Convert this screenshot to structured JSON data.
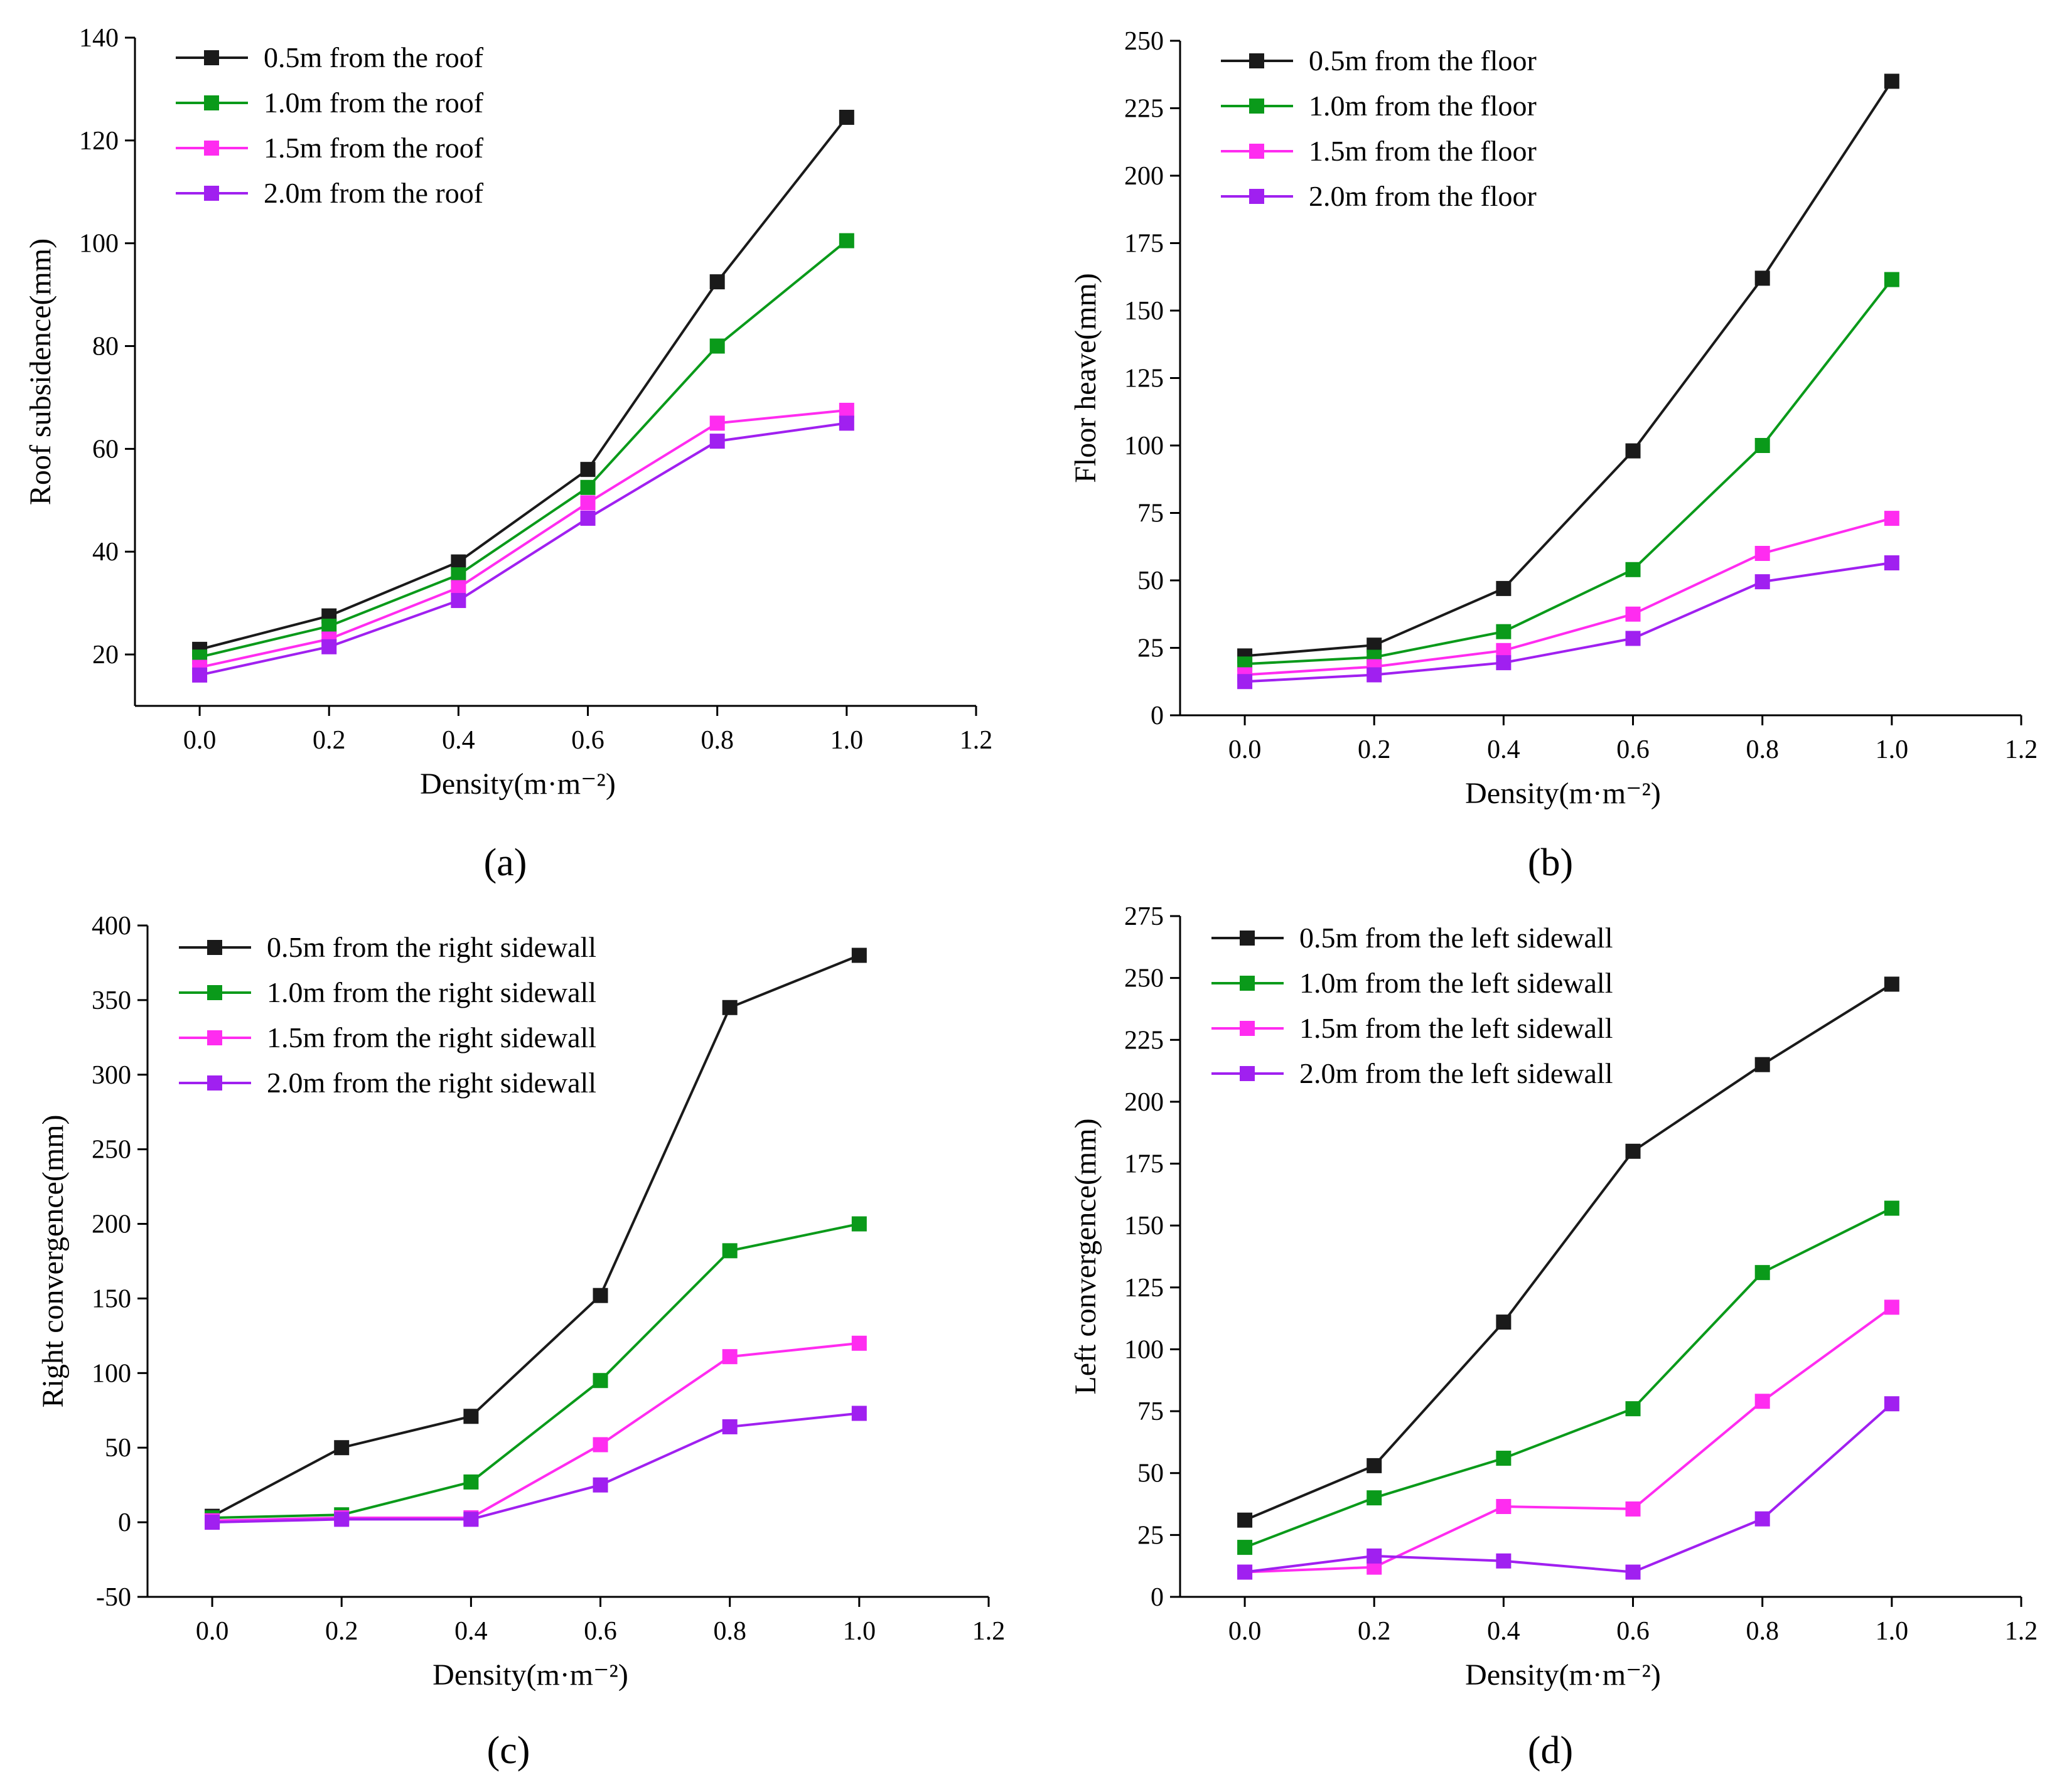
{
  "colors": {
    "s1": "#1a1a1a",
    "s2": "#0a9a1a",
    "s3": "#ff2cf0",
    "s4": "#a020f0"
  },
  "panel_labels": [
    "(a)",
    "(b)",
    "(c)",
    "(d)"
  ],
  "chart_data": [
    {
      "type": "line",
      "xlabel": "Density(m·m⁻²)",
      "ylabel": "Roof subsidence(mm)",
      "xlim": [
        -0.1,
        1.2
      ],
      "ylim": [
        10,
        140
      ],
      "xticks": [
        0.0,
        0.2,
        0.4,
        0.6,
        0.8,
        1.0,
        1.2
      ],
      "yticks": [
        20,
        40,
        60,
        80,
        100,
        120,
        140
      ],
      "x": [
        0.0,
        0.2,
        0.4,
        0.6,
        0.8,
        1.0
      ],
      "legend_position": "top-left",
      "series": [
        {
          "name": "0.5m from the roof",
          "color": "#1a1a1a",
          "values": [
            21,
            27.5,
            38,
            56,
            92.5,
            124.5
          ]
        },
        {
          "name": "1.0m from the roof",
          "color": "#0a9a1a",
          "values": [
            19.5,
            25.5,
            35.5,
            52.5,
            80,
            100.5
          ]
        },
        {
          "name": "1.5m from the roof",
          "color": "#ff2cf0",
          "values": [
            17.5,
            23,
            33,
            49.5,
            65,
            67.5
          ]
        },
        {
          "name": "2.0m from the roof",
          "color": "#a020f0",
          "values": [
            16,
            21.5,
            30.5,
            46.5,
            61.5,
            65
          ]
        }
      ]
    },
    {
      "type": "line",
      "xlabel": "Density(m·m⁻²)",
      "ylabel": "Floor heave(mm)",
      "xlim": [
        -0.1,
        1.2
      ],
      "ylim": [
        0,
        250
      ],
      "xticks": [
        0.0,
        0.2,
        0.4,
        0.6,
        0.8,
        1.0,
        1.2
      ],
      "yticks": [
        0,
        25,
        50,
        75,
        100,
        125,
        150,
        175,
        200,
        225,
        250
      ],
      "x": [
        0.0,
        0.2,
        0.4,
        0.6,
        0.8,
        1.0
      ],
      "legend_position": "top-left",
      "series": [
        {
          "name": "0.5m from the floor",
          "color": "#1a1a1a",
          "values": [
            22,
            26,
            47,
            98,
            162,
            235
          ]
        },
        {
          "name": "1.0m from the floor",
          "color": "#0a9a1a",
          "values": [
            19,
            21.5,
            31,
            54,
            100,
            161.5
          ]
        },
        {
          "name": "1.5m from the floor",
          "color": "#ff2cf0",
          "values": [
            15,
            18,
            24,
            37.5,
            60,
            73
          ]
        },
        {
          "name": "2.0m from the floor",
          "color": "#a020f0",
          "values": [
            12.5,
            15,
            19.5,
            28.5,
            49.5,
            56.5
          ]
        }
      ]
    },
    {
      "type": "line",
      "xlabel": "Density(m·m⁻²)",
      "ylabel": "Right convergence(mm)",
      "xlim": [
        -0.1,
        1.2
      ],
      "ylim": [
        -50,
        400
      ],
      "xticks": [
        0.0,
        0.2,
        0.4,
        0.6,
        0.8,
        1.0,
        1.2
      ],
      "yticks": [
        -50,
        0,
        50,
        100,
        150,
        200,
        250,
        300,
        350,
        400
      ],
      "x": [
        0.0,
        0.2,
        0.4,
        0.6,
        0.8,
        1.0
      ],
      "legend_position": "top-left",
      "series": [
        {
          "name": "0.5m from the right sidewall",
          "color": "#1a1a1a",
          "values": [
            4,
            50,
            71,
            152,
            345,
            380
          ]
        },
        {
          "name": "1.0m from the right sidewall",
          "color": "#0a9a1a",
          "values": [
            3,
            5,
            27,
            95,
            182,
            200
          ]
        },
        {
          "name": "1.5m from the right sidewall",
          "color": "#ff2cf0",
          "values": [
            1,
            3,
            3,
            52,
            111,
            120
          ]
        },
        {
          "name": "2.0m from the right sidewall",
          "color": "#a020f0",
          "values": [
            0,
            2,
            2,
            25,
            64,
            73
          ]
        }
      ]
    },
    {
      "type": "line",
      "xlabel": "Density(m·m⁻²)",
      "ylabel": "Left convergence(mm)",
      "xlim": [
        -0.1,
        1.2
      ],
      "ylim": [
        0,
        275
      ],
      "xticks": [
        0.0,
        0.2,
        0.4,
        0.6,
        0.8,
        1.0,
        1.2
      ],
      "yticks": [
        0,
        25,
        50,
        75,
        100,
        125,
        150,
        175,
        200,
        225,
        250,
        275
      ],
      "x": [
        0.0,
        0.2,
        0.4,
        0.6,
        0.8,
        1.0
      ],
      "legend_position": "top-left",
      "series": [
        {
          "name": "0.5m from the left sidewall",
          "color": "#1a1a1a",
          "values": [
            31,
            53,
            111,
            180,
            215,
            247.5
          ]
        },
        {
          "name": "1.0m from the left sidewall",
          "color": "#0a9a1a",
          "values": [
            20,
            40,
            56,
            76,
            131,
            157
          ]
        },
        {
          "name": "1.5m from the left sidewall",
          "color": "#ff2cf0",
          "values": [
            10,
            12,
            36.5,
            35.5,
            79,
            117
          ]
        },
        {
          "name": "2.0m from the left sidewall",
          "color": "#a020f0",
          "values": [
            10,
            16.5,
            14.5,
            10,
            31.5,
            78
          ]
        }
      ]
    }
  ]
}
